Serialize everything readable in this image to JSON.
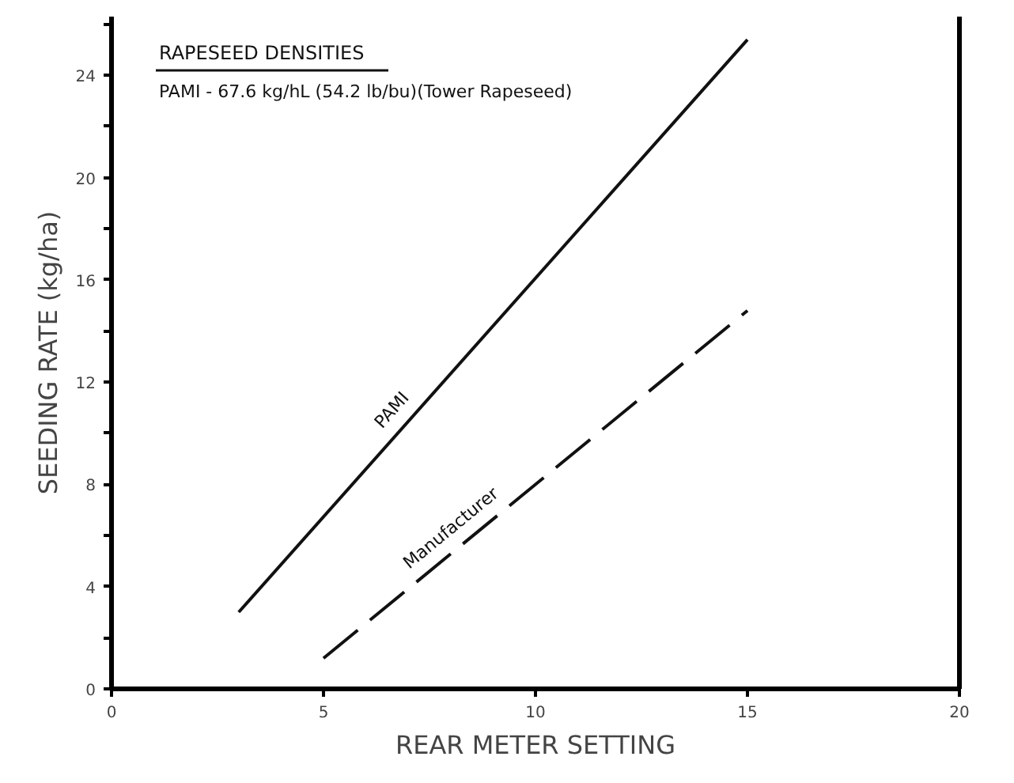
{
  "chart_data": {
    "type": "line",
    "xlabel": "REAR METER SETTING",
    "ylabel": "SEEDING RATE (kg/ha)",
    "annotations": [
      "RAPESEED DENSITIES",
      "PAMI - 67.6 kg/hL (54.2 lb/bu)(Tower Rapeseed)"
    ],
    "series": [
      {
        "name": "PAMI",
        "color": "#111111",
        "x": [
          3,
          15
        ],
        "values": [
          3.0,
          25.4
        ],
        "line_style": "solid"
      },
      {
        "name": "Manufacturer",
        "color": "#111111",
        "x": [
          5,
          15
        ],
        "values": [
          1.2,
          14.8
        ],
        "line_style": "dashed"
      }
    ],
    "xlim": [
      0,
      20
    ],
    "xticks": [
      0,
      5,
      10,
      15,
      20
    ],
    "ylim": [
      0,
      26.3
    ],
    "yticks": [
      0,
      {
        "value": 2,
        "label": null
      },
      4,
      {
        "value": 6,
        "label": null
      },
      8,
      {
        "value": 10,
        "label": null
      },
      12,
      {
        "value": 14,
        "label": null
      },
      16,
      {
        "value": 18,
        "label": null
      },
      20,
      {
        "value": 22,
        "label": null
      },
      24,
      {
        "value": 26,
        "label": null
      }
    ],
    "grid": false,
    "marker": "none"
  }
}
